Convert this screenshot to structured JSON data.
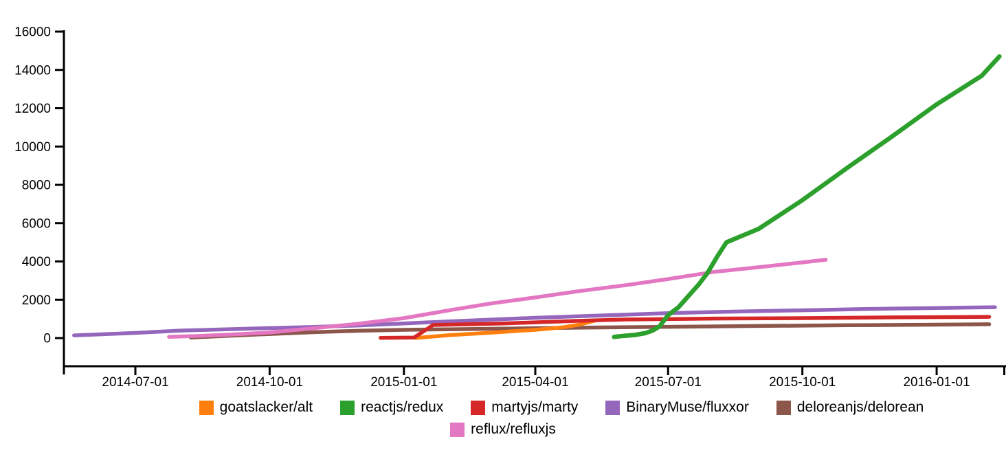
{
  "chart_data": {
    "type": "line",
    "title": "",
    "xlabel": "",
    "ylabel": "",
    "grid": false,
    "background": "#ffffff",
    "axis_color": "#000000",
    "y_axis": {
      "lim": [
        0,
        16000
      ],
      "ticks": [
        0,
        2000,
        4000,
        6000,
        8000,
        10000,
        12000,
        14000,
        16000
      ]
    },
    "x_axis": {
      "tick_labels": [
        "2014-07-01",
        "2014-10-01",
        "2015-01-01",
        "2015-04-01",
        "2015-07-01",
        "2015-10-01",
        "2016-01-01"
      ],
      "unlabeled_edge_tick": true,
      "range": [
        "2014-05-14",
        "2016-02-25"
      ]
    },
    "legend": {
      "position": "bottom",
      "rows": [
        [
          0,
          1,
          2,
          3,
          4
        ],
        [
          5
        ]
      ]
    },
    "series": [
      {
        "name": "goatslacker/alt",
        "color": "#ff7f0e",
        "z": 4,
        "points": [
          [
            "2015-01-09",
            5
          ],
          [
            "2015-02-01",
            150
          ],
          [
            "2015-03-01",
            280
          ],
          [
            "2015-04-01",
            430
          ],
          [
            "2015-04-20",
            560
          ],
          [
            "2015-05-01",
            700
          ],
          [
            "2015-05-13",
            930
          ]
        ]
      },
      {
        "name": "reactjs/redux",
        "color": "#2ca02c",
        "z": 6,
        "points": [
          [
            "2015-05-25",
            60
          ],
          [
            "2015-06-01",
            120
          ],
          [
            "2015-06-08",
            160
          ],
          [
            "2015-06-15",
            250
          ],
          [
            "2015-06-20",
            380
          ],
          [
            "2015-06-25",
            600
          ],
          [
            "2015-07-01",
            1200
          ],
          [
            "2015-07-08",
            1600
          ],
          [
            "2015-07-15",
            2200
          ],
          [
            "2015-07-22",
            2800
          ],
          [
            "2015-07-28",
            3400
          ],
          [
            "2015-08-04",
            4300
          ],
          [
            "2015-08-10",
            5000
          ],
          [
            "2015-09-01",
            5700
          ],
          [
            "2015-10-01",
            7200
          ],
          [
            "2015-11-01",
            8900
          ],
          [
            "2015-12-01",
            10500
          ],
          [
            "2016-01-01",
            12200
          ],
          [
            "2016-02-01",
            13700
          ],
          [
            "2016-02-13",
            14700
          ]
        ]
      },
      {
        "name": "martyjs/marty",
        "color": "#d62728",
        "z": 5,
        "points": [
          [
            "2014-12-16",
            10
          ],
          [
            "2015-01-08",
            30
          ],
          [
            "2015-01-21",
            680
          ],
          [
            "2015-02-15",
            720
          ],
          [
            "2015-03-10",
            760
          ],
          [
            "2015-04-01",
            820
          ],
          [
            "2015-05-01",
            900
          ],
          [
            "2015-06-01",
            970
          ],
          [
            "2015-08-01",
            1020
          ],
          [
            "2015-10-01",
            1040
          ],
          [
            "2015-12-01",
            1080
          ],
          [
            "2016-02-06",
            1110
          ]
        ]
      },
      {
        "name": "BinaryMuse/fluxxor",
        "color": "#9467bd",
        "z": 1,
        "points": [
          [
            "2014-05-20",
            140
          ],
          [
            "2014-07-01",
            270
          ],
          [
            "2014-08-01",
            390
          ],
          [
            "2014-09-01",
            460
          ],
          [
            "2014-10-01",
            520
          ],
          [
            "2014-11-01",
            580
          ],
          [
            "2014-12-01",
            660
          ],
          [
            "2015-01-01",
            760
          ],
          [
            "2015-02-01",
            870
          ],
          [
            "2015-03-01",
            960
          ],
          [
            "2015-04-01",
            1060
          ],
          [
            "2015-05-01",
            1140
          ],
          [
            "2015-06-01",
            1220
          ],
          [
            "2015-07-01",
            1300
          ],
          [
            "2015-08-01",
            1360
          ],
          [
            "2015-09-01",
            1410
          ],
          [
            "2015-10-01",
            1450
          ],
          [
            "2015-11-01",
            1500
          ],
          [
            "2015-12-01",
            1540
          ],
          [
            "2016-01-01",
            1570
          ],
          [
            "2016-02-10",
            1610
          ]
        ]
      },
      {
        "name": "deloreanjs/delorean",
        "color": "#8c564b",
        "z": 2,
        "points": [
          [
            "2014-08-08",
            30
          ],
          [
            "2014-09-01",
            110
          ],
          [
            "2014-10-01",
            210
          ],
          [
            "2014-11-01",
            310
          ],
          [
            "2014-12-01",
            380
          ],
          [
            "2015-01-01",
            430
          ],
          [
            "2015-02-01",
            460
          ],
          [
            "2015-03-10",
            490
          ],
          [
            "2015-05-01",
            540
          ],
          [
            "2015-07-01",
            590
          ],
          [
            "2015-09-01",
            630
          ],
          [
            "2015-11-01",
            670
          ],
          [
            "2016-01-01",
            700
          ],
          [
            "2016-02-06",
            720
          ]
        ]
      },
      {
        "name": "reflux/refluxjs",
        "color": "#e377c2",
        "z": 3,
        "points": [
          [
            "2014-07-24",
            60
          ],
          [
            "2014-08-15",
            120
          ],
          [
            "2014-09-01",
            170
          ],
          [
            "2014-10-01",
            290
          ],
          [
            "2014-11-01",
            520
          ],
          [
            "2014-12-01",
            750
          ],
          [
            "2015-01-01",
            1040
          ],
          [
            "2015-02-01",
            1450
          ],
          [
            "2015-03-01",
            1800
          ],
          [
            "2015-04-01",
            2120
          ],
          [
            "2015-05-01",
            2450
          ],
          [
            "2015-06-01",
            2750
          ],
          [
            "2015-07-01",
            3080
          ],
          [
            "2015-08-01",
            3450
          ],
          [
            "2015-09-01",
            3700
          ],
          [
            "2015-10-01",
            3950
          ],
          [
            "2015-10-17",
            4090
          ]
        ]
      }
    ]
  }
}
